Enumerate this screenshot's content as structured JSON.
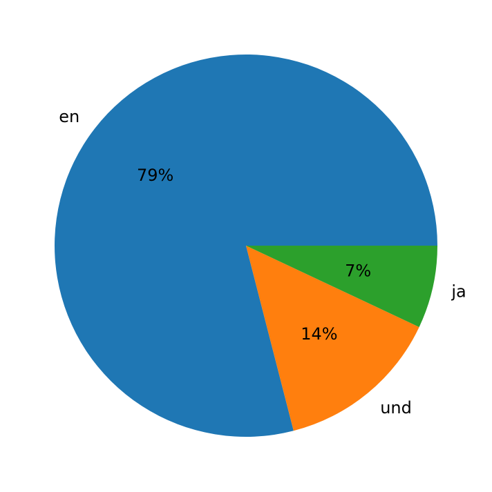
{
  "chart_data": {
    "type": "pie",
    "categories": [
      "en",
      "und",
      "ja"
    ],
    "values": [
      79,
      14,
      7
    ],
    "percent_labels": [
      "79%",
      "14%",
      "7%"
    ],
    "colors": [
      "#1f77b4",
      "#ff7f0e",
      "#2ca02c"
    ],
    "start_angle": 0,
    "direction": "counterclockwise",
    "title": ""
  }
}
